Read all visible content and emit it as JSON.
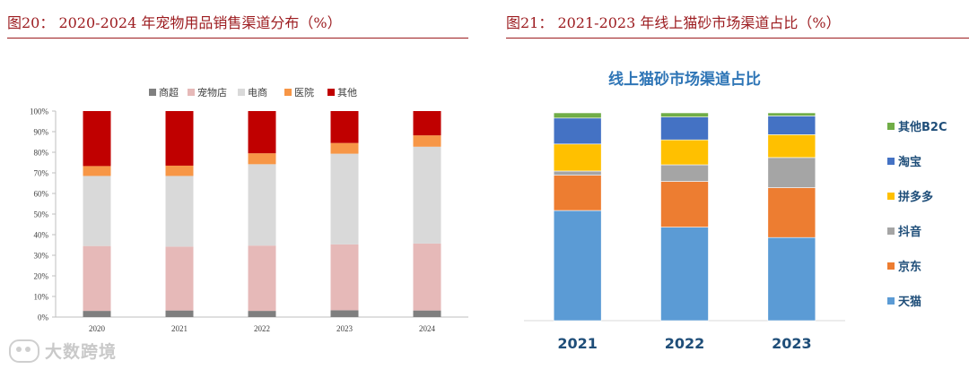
{
  "left": {
    "figure_title": "图20：  2020-2024 年宠物用品销售渠道分布（%）"
  },
  "right": {
    "figure_title": "图21：  2021-2023 年线上猫砂市场渠道占比（%）"
  },
  "watermark": "大数跨境",
  "colors": {
    "title_red": "#9c1b1f",
    "supermarket": "#7f7f7f",
    "pet_store": "#e6b9b8",
    "ecommerce": "#d9d9d9",
    "hospital": "#f79646",
    "other_left": "#c00000",
    "tmall": "#5b9bd5",
    "jd": "#ed7d31",
    "douyin": "#a5a5a5",
    "pdd": "#ffc000",
    "taobao": "#4472c4",
    "other_b2c": "#70ad47",
    "right_title_blue": "#2e75b6",
    "right_year_blue": "#1f4e79"
  },
  "chart_data": [
    {
      "type": "bar",
      "stacked": true,
      "title": "",
      "xlabel": "",
      "ylabel": "",
      "categories": [
        "2020",
        "2021",
        "2022",
        "2023",
        "2024"
      ],
      "ylim": [
        0,
        100
      ],
      "yticks": [
        "0%",
        "10%",
        "20%",
        "30%",
        "40%",
        "50%",
        "60%",
        "70%",
        "80%",
        "90%",
        "100%"
      ],
      "grid": false,
      "legend": "top",
      "series": [
        {
          "name": "商超",
          "color": "#7f7f7f",
          "values": [
            3.0,
            3.2,
            3.0,
            3.3,
            3.2
          ]
        },
        {
          "name": "宠物店",
          "color": "#e6b9b8",
          "values": [
            31.5,
            31.0,
            31.7,
            32.0,
            32.5
          ]
        },
        {
          "name": "电商",
          "color": "#d9d9d9",
          "values": [
            34.0,
            34.3,
            39.5,
            44.0,
            47.0
          ]
        },
        {
          "name": "医院",
          "color": "#f79646",
          "values": [
            4.8,
            5.0,
            5.3,
            5.2,
            5.5
          ]
        },
        {
          "name": "其他",
          "color": "#c00000",
          "values": [
            26.7,
            26.5,
            20.5,
            15.5,
            11.8
          ]
        }
      ]
    },
    {
      "type": "bar",
      "stacked": true,
      "title": "线上猫砂市场渠道占比",
      "xlabel": "",
      "ylabel": "",
      "categories": [
        "2021",
        "2022",
        "2023"
      ],
      "ylim": [
        0,
        100
      ],
      "grid": false,
      "legend": "right",
      "series": [
        {
          "name": "天猫",
          "color": "#5b9bd5",
          "values": [
            53,
            45,
            40
          ]
        },
        {
          "name": "京东",
          "color": "#ed7d31",
          "values": [
            17,
            22,
            24
          ]
        },
        {
          "name": "抖音",
          "color": "#a5a5a5",
          "values": [
            2,
            8,
            14.5
          ]
        },
        {
          "name": "拼多多",
          "color": "#ffc000",
          "values": [
            13,
            12,
            11
          ]
        },
        {
          "name": "淘宝",
          "color": "#4472c4",
          "values": [
            12.5,
            11,
            9
          ]
        },
        {
          "name": "其他B2C",
          "color": "#70ad47",
          "values": [
            2.5,
            2,
            1.5
          ]
        }
      ]
    }
  ]
}
